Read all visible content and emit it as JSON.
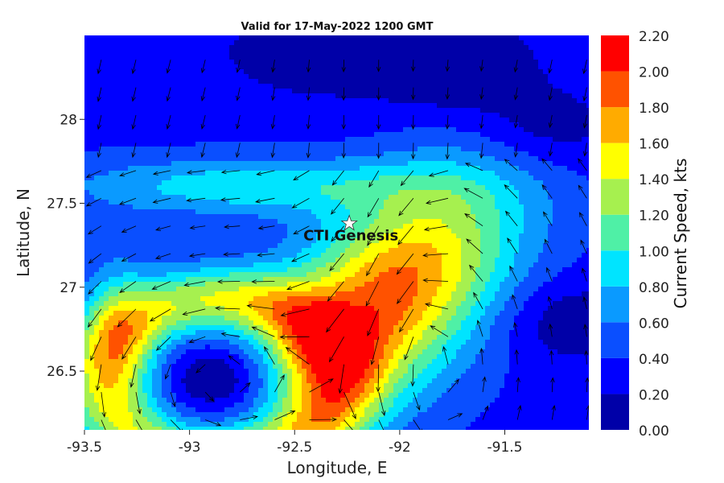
{
  "chart_data": {
    "type": "heatmap",
    "title": "Valid for 17-May-2022 1200 GMT",
    "xlabel": "Longitude, E",
    "ylabel": "Latitude, N",
    "colorbar_label": "Current Speed, kts",
    "xlim": [
      -93.5,
      -91.1
    ],
    "ylim": [
      26.15,
      28.5
    ],
    "x_ticks": [
      "-93.5",
      "-93",
      "-92.5",
      "-92",
      "-91.5"
    ],
    "x_tick_values": [
      -93.5,
      -93.0,
      -92.5,
      -92.0,
      -91.5
    ],
    "y_ticks": [
      "26.5",
      "27",
      "27.5",
      "28"
    ],
    "y_tick_values": [
      26.5,
      27.0,
      27.5,
      28.0
    ],
    "levels": [
      "0.00",
      "0.20",
      "0.40",
      "0.60",
      "0.80",
      "1.00",
      "1.20",
      "1.40",
      "1.60",
      "1.80",
      "2.00",
      "2.20"
    ],
    "level_values": [
      0.0,
      0.2,
      0.4,
      0.6,
      0.8,
      1.0,
      1.2,
      1.4,
      1.6,
      1.8,
      2.0,
      2.2
    ],
    "level_colors": [
      "#0000a8",
      "#0000ff",
      "#0a4fff",
      "#0a9aff",
      "#00e4ff",
      "#4ff0a6",
      "#a6f04f",
      "#ffff00",
      "#ffab00",
      "#ff5200",
      "#ff0000"
    ],
    "features": {
      "jet_core": {
        "lon": -92.05,
        "lat": 26.95,
        "peak": 1.95,
        "width_along": 0.55,
        "width_across": 0.3,
        "angle_deg": 55
      },
      "eddy_center": {
        "lon": -92.85,
        "lat": 26.45,
        "min": 0.15
      },
      "annulus_radius_deg": 0.55,
      "north_band_lat": 27.75,
      "west_ridge": {
        "lon": -93.35,
        "lat": 26.75,
        "peak": 1.75
      },
      "east_low_regions": [
        {
          "lon": -91.7,
          "lat": 28.3
        },
        {
          "lon": -91.3,
          "lat": 27.95
        },
        {
          "lon": -91.2,
          "lat": 26.8
        }
      ]
    },
    "marker": {
      "label": "CTI Genesis",
      "lon": -92.24,
      "lat": 27.38,
      "symbol": "star"
    }
  }
}
